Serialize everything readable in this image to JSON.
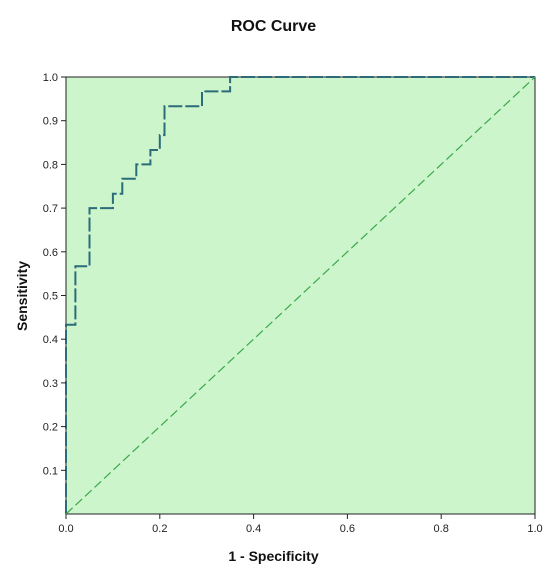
{
  "chart_data": {
    "type": "line",
    "title": "ROC Curve",
    "xlabel": "1 - Specificity",
    "ylabel": "Sensitivity",
    "xlim": [
      0,
      1
    ],
    "ylim": [
      0,
      1
    ],
    "x_ticks": [
      "0.0",
      "0.2",
      "0.4",
      "0.6",
      "0.8",
      "1.0"
    ],
    "y_ticks": [
      "0.1",
      "0.2",
      "0.3",
      "0.4",
      "0.5",
      "0.6",
      "0.7",
      "0.8",
      "0.9",
      "1.0"
    ],
    "grid": false,
    "series": [
      {
        "x": [
          0.0,
          0.0,
          0.02,
          0.02,
          0.05,
          0.05,
          0.1,
          0.1,
          0.12,
          0.12,
          0.15,
          0.15,
          0.18,
          0.18,
          0.2,
          0.2,
          0.21,
          0.21,
          0.29,
          0.29,
          0.35,
          0.35,
          1.0
        ],
        "y": [
          0.0,
          0.433,
          0.433,
          0.567,
          0.567,
          0.7,
          0.7,
          0.733,
          0.733,
          0.767,
          0.767,
          0.8,
          0.8,
          0.833,
          0.833,
          0.867,
          0.867,
          0.933,
          0.933,
          0.967,
          0.967,
          1.0,
          1.0
        ],
        "color": "#2b6b7a",
        "style": "dashed"
      },
      {
        "x": [
          0,
          1
        ],
        "y": [
          0,
          1
        ],
        "color": "#3aa84a",
        "style": "dashed"
      }
    ],
    "colors": {
      "plot_background": "#ccf5cc",
      "axis": "#222222"
    }
  }
}
